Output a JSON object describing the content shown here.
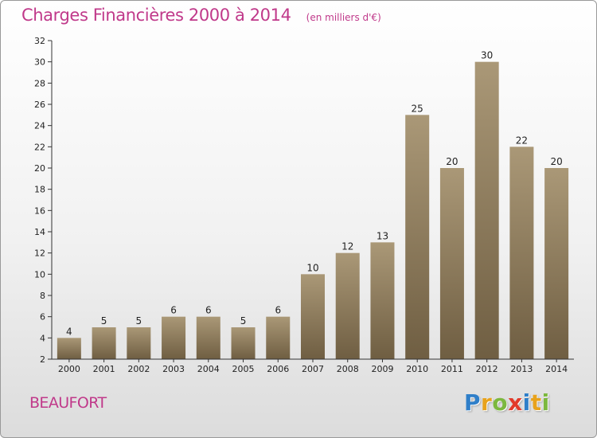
{
  "colors": {
    "title": "#c0398a",
    "subtitle": "#c0398a",
    "commune": "#c0398a",
    "bar_light": "#aa9877",
    "bar_dark": "#6f5e42",
    "axis": "#333333",
    "grid": "#dddddd",
    "text": "#222222"
  },
  "header": {
    "title": "Charges Financières 2000 à 2014",
    "subtitle": "(en milliers d'€)"
  },
  "footer": {
    "commune": "BEAUFORT",
    "logo_letters": [
      {
        "char": "P",
        "color": "#2f7fc9"
      },
      {
        "char": "r",
        "color": "#e8a21b"
      },
      {
        "char": "o",
        "color": "#7cb83e"
      },
      {
        "char": "x",
        "color": "#e23a2a"
      },
      {
        "char": "i",
        "color": "#2f7fc9"
      },
      {
        "char": "t",
        "color": "#e8a21b"
      },
      {
        "char": "i",
        "color": "#7cb83e"
      }
    ]
  },
  "chart_data": {
    "type": "bar",
    "categories": [
      "2000",
      "2001",
      "2002",
      "2003",
      "2004",
      "2005",
      "2006",
      "2007",
      "2008",
      "2009",
      "2010",
      "2011",
      "2012",
      "2013",
      "2014"
    ],
    "values": [
      4,
      5,
      5,
      6,
      6,
      5,
      6,
      10,
      12,
      13,
      25,
      20,
      30,
      22,
      20
    ],
    "ylim": [
      2,
      32
    ],
    "yticks": [
      2,
      4,
      6,
      8,
      10,
      12,
      14,
      16,
      18,
      20,
      22,
      24,
      26,
      28,
      30,
      32
    ],
    "grid": false,
    "data_labels": true,
    "title": "Charges Financières 2000 à 2014",
    "xlabel": "",
    "ylabel": ""
  }
}
